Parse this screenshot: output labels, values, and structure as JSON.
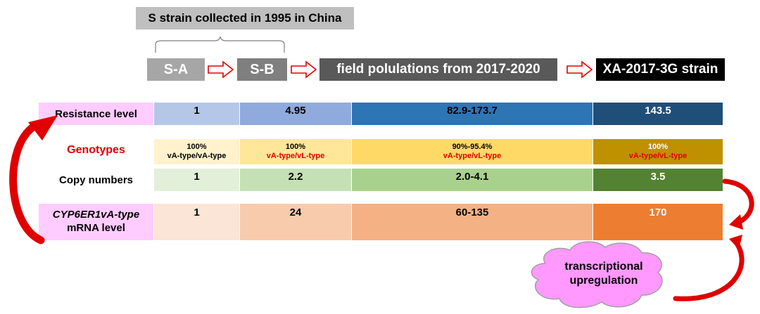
{
  "header": {
    "collected_label": "S strain collected in 1995 in China",
    "stages": [
      {
        "label": "S-A",
        "color": "#a6a6a6"
      },
      {
        "label": "S-B",
        "color": "#7f7f7f"
      },
      {
        "label": "field polulations from 2017-2020",
        "color": "#595959"
      },
      {
        "label": "XA-2017-3G strain",
        "color": "#000000"
      }
    ]
  },
  "rows": {
    "resistance": {
      "label": "Resistance level",
      "values": [
        "1",
        "4.95",
        "82.9-173.7",
        "143.5"
      ],
      "colors": [
        "#b4c7e7",
        "#8faadc",
        "#2e75b6",
        "#1f4e79"
      ]
    },
    "genotypes": {
      "label": "Genotypes",
      "label_color": "#e00000",
      "percents": [
        "100%",
        "100%",
        "90%-95.4%",
        "100%"
      ],
      "types": [
        "vA-type/vA-type",
        "vA-type/vL-type",
        "vA-type/vL-type",
        "vA-type/vL-type"
      ],
      "colors": [
        "#fff2cc",
        "#ffe699",
        "#ffd966",
        "#bf9000"
      ]
    },
    "copy_numbers": {
      "label": "Copy numbers",
      "values": [
        "1",
        "2.2",
        "2.0-4.1",
        "3.5"
      ],
      "colors": [
        "#e2f0d9",
        "#c5e0b4",
        "#a9d18e",
        "#548235"
      ]
    },
    "mrna": {
      "label_italic": "CYP6ER1vA-type",
      "label_line2": "mRNA level",
      "values": [
        "1",
        "24",
        "60-135",
        "170"
      ],
      "colors": [
        "#fbe5d6",
        "#f8cbad",
        "#f4b183",
        "#ed7d31"
      ]
    }
  },
  "label_bg": "#ffccff",
  "cloud": {
    "line1": "transcriptional",
    "line2": "upregulation",
    "color": "#ff99ff"
  },
  "arrow_color": "#e00000"
}
